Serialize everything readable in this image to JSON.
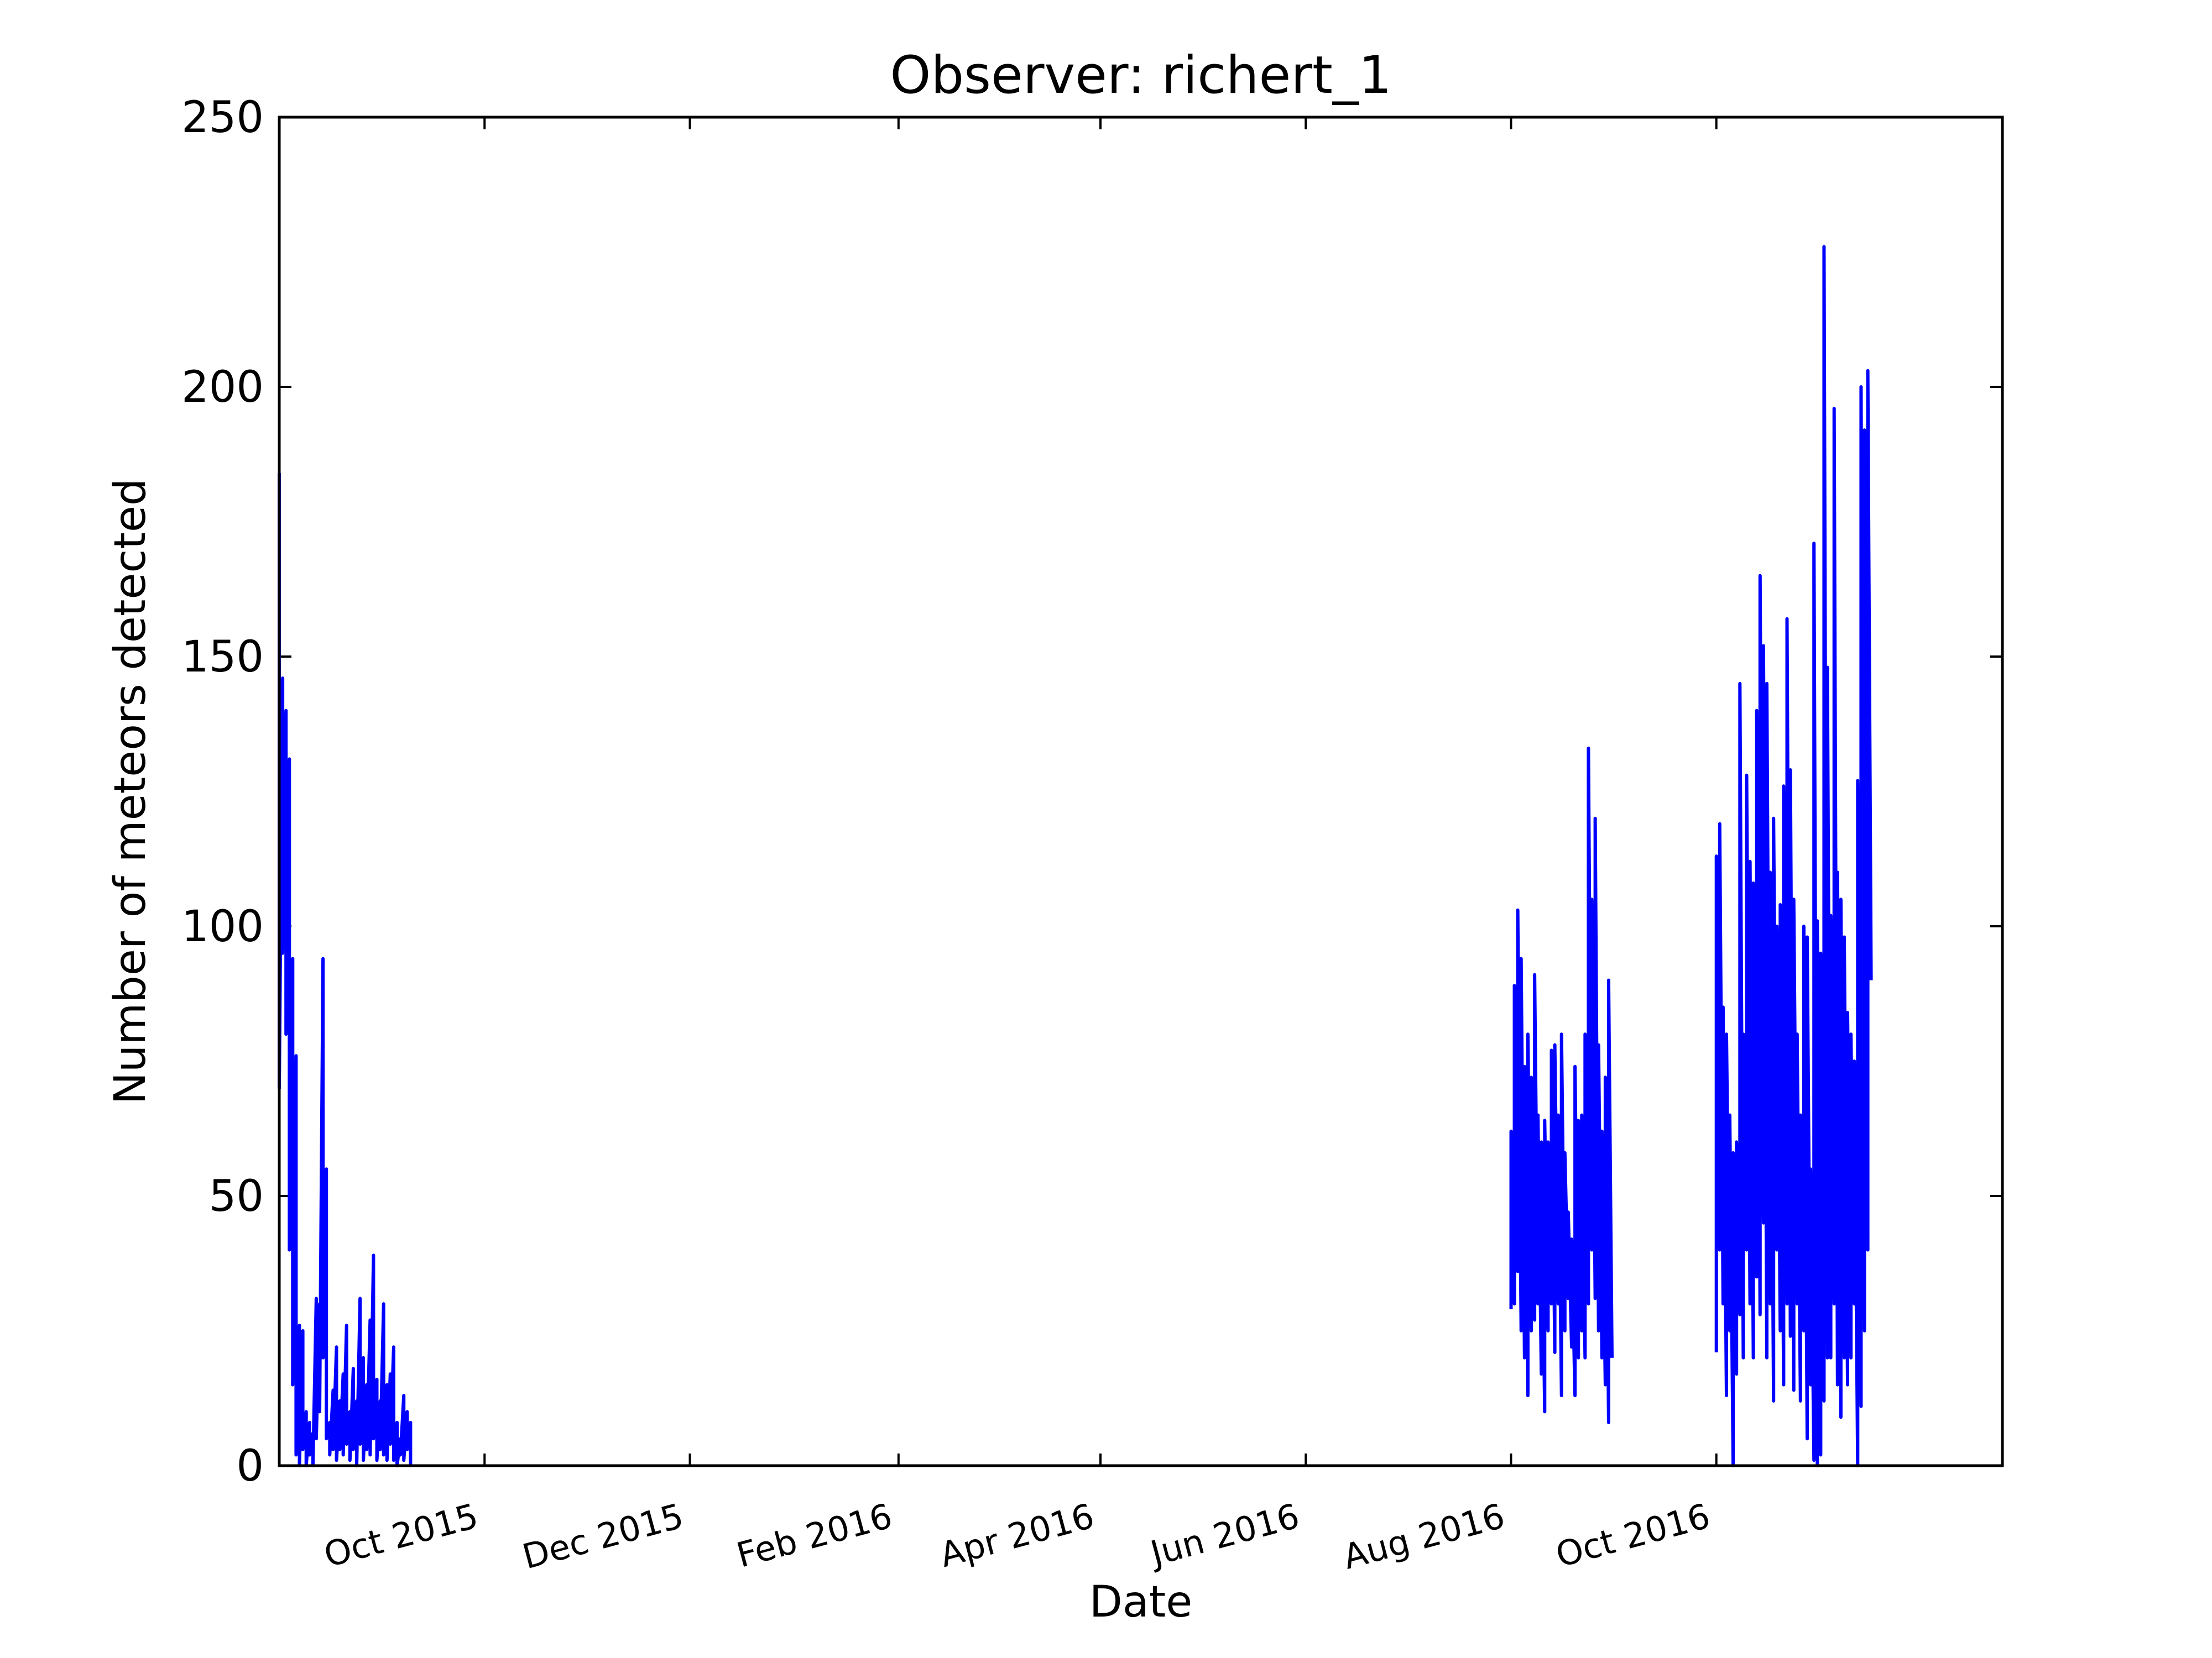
{
  "chart_data": {
    "type": "line",
    "title": "Observer: richert_1",
    "xlabel": "Date",
    "ylabel": "Number of meteors detected",
    "xlim": [
      "2015-08-01",
      "2016-12-25"
    ],
    "ylim": [
      0,
      250
    ],
    "yticks": [
      0,
      50,
      100,
      150,
      200,
      250
    ],
    "xticks": [
      {
        "date": "2015-10-01",
        "label": "Oct 2015"
      },
      {
        "date": "2015-12-01",
        "label": "Dec 2015"
      },
      {
        "date": "2016-02-01",
        "label": "Feb 2016"
      },
      {
        "date": "2016-04-01",
        "label": "Apr 2016"
      },
      {
        "date": "2016-06-01",
        "label": "Jun 2016"
      },
      {
        "date": "2016-08-01",
        "label": "Aug 2016"
      },
      {
        "date": "2016-10-01",
        "label": "Oct 2016"
      }
    ],
    "grid": false,
    "legend": "none",
    "line_color": "#0000ff",
    "series": [
      {
        "segments": [
          [
            [
              "2015-08-01",
              184
            ],
            [
              "2015-08-01",
              70
            ],
            [
              "2015-08-02",
              146
            ],
            [
              "2015-08-02",
              95
            ],
            [
              "2015-08-03",
              140
            ],
            [
              "2015-08-03",
              80
            ],
            [
              "2015-08-04",
              131
            ],
            [
              "2015-08-04",
              40
            ],
            [
              "2015-08-05",
              94
            ],
            [
              "2015-08-05",
              15
            ],
            [
              "2015-08-06",
              76
            ],
            [
              "2015-08-06",
              2
            ],
            [
              "2015-08-07",
              26
            ],
            [
              "2015-08-07",
              0
            ],
            [
              "2015-08-08",
              25
            ],
            [
              "2015-08-08",
              3
            ],
            [
              "2015-08-09",
              10
            ],
            [
              "2015-08-09",
              0
            ],
            [
              "2015-08-10",
              8
            ],
            [
              "2015-08-10",
              2
            ],
            [
              "2015-08-11",
              6
            ],
            [
              "2015-08-11",
              0
            ],
            [
              "2015-08-12",
              31
            ],
            [
              "2015-08-12",
              5
            ],
            [
              "2015-08-13",
              30
            ],
            [
              "2015-08-13",
              10
            ],
            [
              "2015-08-14",
              94
            ],
            [
              "2015-08-14",
              20
            ],
            [
              "2015-08-15",
              55
            ],
            [
              "2015-08-15",
              5
            ],
            [
              "2015-08-16",
              8
            ],
            [
              "2015-08-16",
              2
            ],
            [
              "2015-08-17",
              14
            ],
            [
              "2015-08-17",
              3
            ],
            [
              "2015-08-18",
              22
            ],
            [
              "2015-08-18",
              1
            ],
            [
              "2015-08-19",
              12
            ],
            [
              "2015-08-19",
              3
            ],
            [
              "2015-08-20",
              17
            ],
            [
              "2015-08-20",
              2
            ],
            [
              "2015-08-21",
              26
            ],
            [
              "2015-08-21",
              4
            ],
            [
              "2015-08-22",
              10
            ],
            [
              "2015-08-22",
              1
            ],
            [
              "2015-08-23",
              18
            ],
            [
              "2015-08-23",
              3
            ],
            [
              "2015-08-24",
              12
            ],
            [
              "2015-08-24",
              0
            ],
            [
              "2015-08-25",
              31
            ],
            [
              "2015-08-25",
              4
            ],
            [
              "2015-08-26",
              20
            ],
            [
              "2015-08-26",
              1
            ],
            [
              "2015-08-27",
              15
            ],
            [
              "2015-08-27",
              3
            ],
            [
              "2015-08-28",
              27
            ],
            [
              "2015-08-28",
              2
            ],
            [
              "2015-08-29",
              39
            ],
            [
              "2015-08-29",
              5
            ],
            [
              "2015-08-30",
              16
            ],
            [
              "2015-08-30",
              1
            ],
            [
              "2015-08-31",
              12
            ],
            [
              "2015-08-31",
              3
            ],
            [
              "2015-09-01",
              30
            ],
            [
              "2015-09-01",
              2
            ],
            [
              "2015-09-02",
              15
            ],
            [
              "2015-09-02",
              1
            ],
            [
              "2015-09-03",
              17
            ],
            [
              "2015-09-03",
              4
            ],
            [
              "2015-09-04",
              22
            ],
            [
              "2015-09-04",
              1
            ],
            [
              "2015-09-05",
              8
            ],
            [
              "2015-09-05",
              0
            ],
            [
              "2015-09-06",
              5
            ],
            [
              "2015-09-06",
              2
            ],
            [
              "2015-09-07",
              13
            ],
            [
              "2015-09-07",
              1
            ],
            [
              "2015-09-08",
              10
            ],
            [
              "2015-09-08",
              3
            ],
            [
              "2015-09-09",
              8
            ],
            [
              "2015-09-09",
              0
            ]
          ],
          [
            [
              "2016-08-01",
              29
            ],
            [
              "2016-08-01",
              62
            ],
            [
              "2016-08-02",
              30
            ],
            [
              "2016-08-02",
              89
            ],
            [
              "2016-08-03",
              36
            ],
            [
              "2016-08-03",
              103
            ],
            [
              "2016-08-04",
              25
            ],
            [
              "2016-08-04",
              94
            ],
            [
              "2016-08-05",
              20
            ],
            [
              "2016-08-05",
              74
            ],
            [
              "2016-08-06",
              13
            ],
            [
              "2016-08-06",
              80
            ],
            [
              "2016-08-07",
              25
            ],
            [
              "2016-08-07",
              72
            ],
            [
              "2016-08-08",
              27
            ],
            [
              "2016-08-08",
              91
            ],
            [
              "2016-08-09",
              30
            ],
            [
              "2016-08-09",
              65
            ],
            [
              "2016-08-10",
              17
            ],
            [
              "2016-08-10",
              60
            ],
            [
              "2016-08-11",
              10
            ],
            [
              "2016-08-11",
              64
            ],
            [
              "2016-08-12",
              25
            ],
            [
              "2016-08-12",
              60
            ],
            [
              "2016-08-13",
              30
            ],
            [
              "2016-08-13",
              77
            ],
            [
              "2016-08-14",
              21
            ],
            [
              "2016-08-14",
              78
            ],
            [
              "2016-08-15",
              30
            ],
            [
              "2016-08-15",
              65
            ],
            [
              "2016-08-16",
              13
            ],
            [
              "2016-08-16",
              80
            ],
            [
              "2016-08-17",
              25
            ],
            [
              "2016-08-17",
              58
            ],
            [
              "2016-08-18",
              31
            ],
            [
              "2016-08-18",
              47
            ],
            [
              "2016-08-19",
              22
            ],
            [
              "2016-08-19",
              42
            ],
            [
              "2016-08-20",
              13
            ],
            [
              "2016-08-20",
              74
            ],
            [
              "2016-08-21",
              20
            ],
            [
              "2016-08-21",
              64
            ],
            [
              "2016-08-22",
              25
            ],
            [
              "2016-08-22",
              65
            ],
            [
              "2016-08-23",
              20
            ],
            [
              "2016-08-23",
              80
            ],
            [
              "2016-08-24",
              30
            ],
            [
              "2016-08-24",
              133
            ],
            [
              "2016-08-25",
              40
            ],
            [
              "2016-08-25",
              105
            ],
            [
              "2016-08-26",
              31
            ],
            [
              "2016-08-26",
              120
            ],
            [
              "2016-08-27",
              25
            ],
            [
              "2016-08-27",
              78
            ],
            [
              "2016-08-28",
              20
            ],
            [
              "2016-08-28",
              62
            ],
            [
              "2016-08-29",
              15
            ],
            [
              "2016-08-29",
              72
            ],
            [
              "2016-08-30",
              8
            ],
            [
              "2016-08-30",
              90
            ],
            [
              "2016-08-31",
              20
            ]
          ],
          [
            [
              "2016-10-01",
              21
            ],
            [
              "2016-10-01",
              113
            ],
            [
              "2016-10-02",
              40
            ],
            [
              "2016-10-02",
              119
            ],
            [
              "2016-10-03",
              30
            ],
            [
              "2016-10-03",
              85
            ],
            [
              "2016-10-04",
              13
            ],
            [
              "2016-10-04",
              80
            ],
            [
              "2016-10-05",
              25
            ],
            [
              "2016-10-05",
              65
            ],
            [
              "2016-10-06",
              0
            ],
            [
              "2016-10-06",
              58
            ],
            [
              "2016-10-07",
              17
            ],
            [
              "2016-10-07",
              60
            ],
            [
              "2016-10-08",
              28
            ],
            [
              "2016-10-08",
              145
            ],
            [
              "2016-10-09",
              20
            ],
            [
              "2016-10-09",
              80
            ],
            [
              "2016-10-10",
              40
            ],
            [
              "2016-10-10",
              128
            ],
            [
              "2016-10-11",
              30
            ],
            [
              "2016-10-11",
              112
            ],
            [
              "2016-10-12",
              20
            ],
            [
              "2016-10-12",
              108
            ],
            [
              "2016-10-13",
              35
            ],
            [
              "2016-10-13",
              140
            ],
            [
              "2016-10-14",
              28
            ],
            [
              "2016-10-14",
              165
            ],
            [
              "2016-10-15",
              45
            ],
            [
              "2016-10-15",
              152
            ],
            [
              "2016-10-16",
              20
            ],
            [
              "2016-10-16",
              145
            ],
            [
              "2016-10-17",
              30
            ],
            [
              "2016-10-17",
              110
            ],
            [
              "2016-10-18",
              12
            ],
            [
              "2016-10-18",
              120
            ],
            [
              "2016-10-19",
              40
            ],
            [
              "2016-10-19",
              100
            ],
            [
              "2016-10-20",
              25
            ],
            [
              "2016-10-20",
              104
            ],
            [
              "2016-10-21",
              15
            ],
            [
              "2016-10-21",
              126
            ],
            [
              "2016-10-22",
              30
            ],
            [
              "2016-10-22",
              157
            ],
            [
              "2016-10-23",
              24
            ],
            [
              "2016-10-23",
              129
            ],
            [
              "2016-10-24",
              14
            ],
            [
              "2016-10-24",
              105
            ],
            [
              "2016-10-25",
              30
            ],
            [
              "2016-10-25",
              80
            ],
            [
              "2016-10-26",
              12
            ],
            [
              "2016-10-26",
              65
            ],
            [
              "2016-10-27",
              25
            ],
            [
              "2016-10-27",
              100
            ],
            [
              "2016-10-28",
              5
            ],
            [
              "2016-10-28",
              98
            ],
            [
              "2016-10-29",
              15
            ],
            [
              "2016-10-29",
              55
            ],
            [
              "2016-10-30",
              1
            ],
            [
              "2016-10-30",
              171
            ],
            [
              "2016-10-31",
              0
            ],
            [
              "2016-10-31",
              101
            ],
            [
              "2016-11-01",
              2
            ],
            [
              "2016-11-01",
              95
            ],
            [
              "2016-11-02",
              12
            ],
            [
              "2016-11-02",
              226
            ],
            [
              "2016-11-03",
              20
            ],
            [
              "2016-11-03",
              148
            ],
            [
              "2016-11-04",
              20
            ],
            [
              "2016-11-04",
              102
            ],
            [
              "2016-11-05",
              30
            ],
            [
              "2016-11-05",
              196
            ],
            [
              "2016-11-06",
              15
            ],
            [
              "2016-11-06",
              110
            ],
            [
              "2016-11-07",
              9
            ],
            [
              "2016-11-07",
              105
            ],
            [
              "2016-11-08",
              20
            ],
            [
              "2016-11-08",
              98
            ],
            [
              "2016-11-09",
              15
            ],
            [
              "2016-11-09",
              84
            ],
            [
              "2016-11-10",
              20
            ],
            [
              "2016-11-10",
              80
            ],
            [
              "2016-11-11",
              30
            ],
            [
              "2016-11-11",
              75
            ],
            [
              "2016-11-12",
              0
            ],
            [
              "2016-11-12",
              127
            ],
            [
              "2016-11-13",
              11
            ],
            [
              "2016-11-13",
              200
            ],
            [
              "2016-11-14",
              25
            ],
            [
              "2016-11-14",
              192
            ],
            [
              "2016-11-15",
              40
            ],
            [
              "2016-11-15",
              203
            ],
            [
              "2016-11-16",
              90
            ]
          ]
        ]
      }
    ]
  }
}
